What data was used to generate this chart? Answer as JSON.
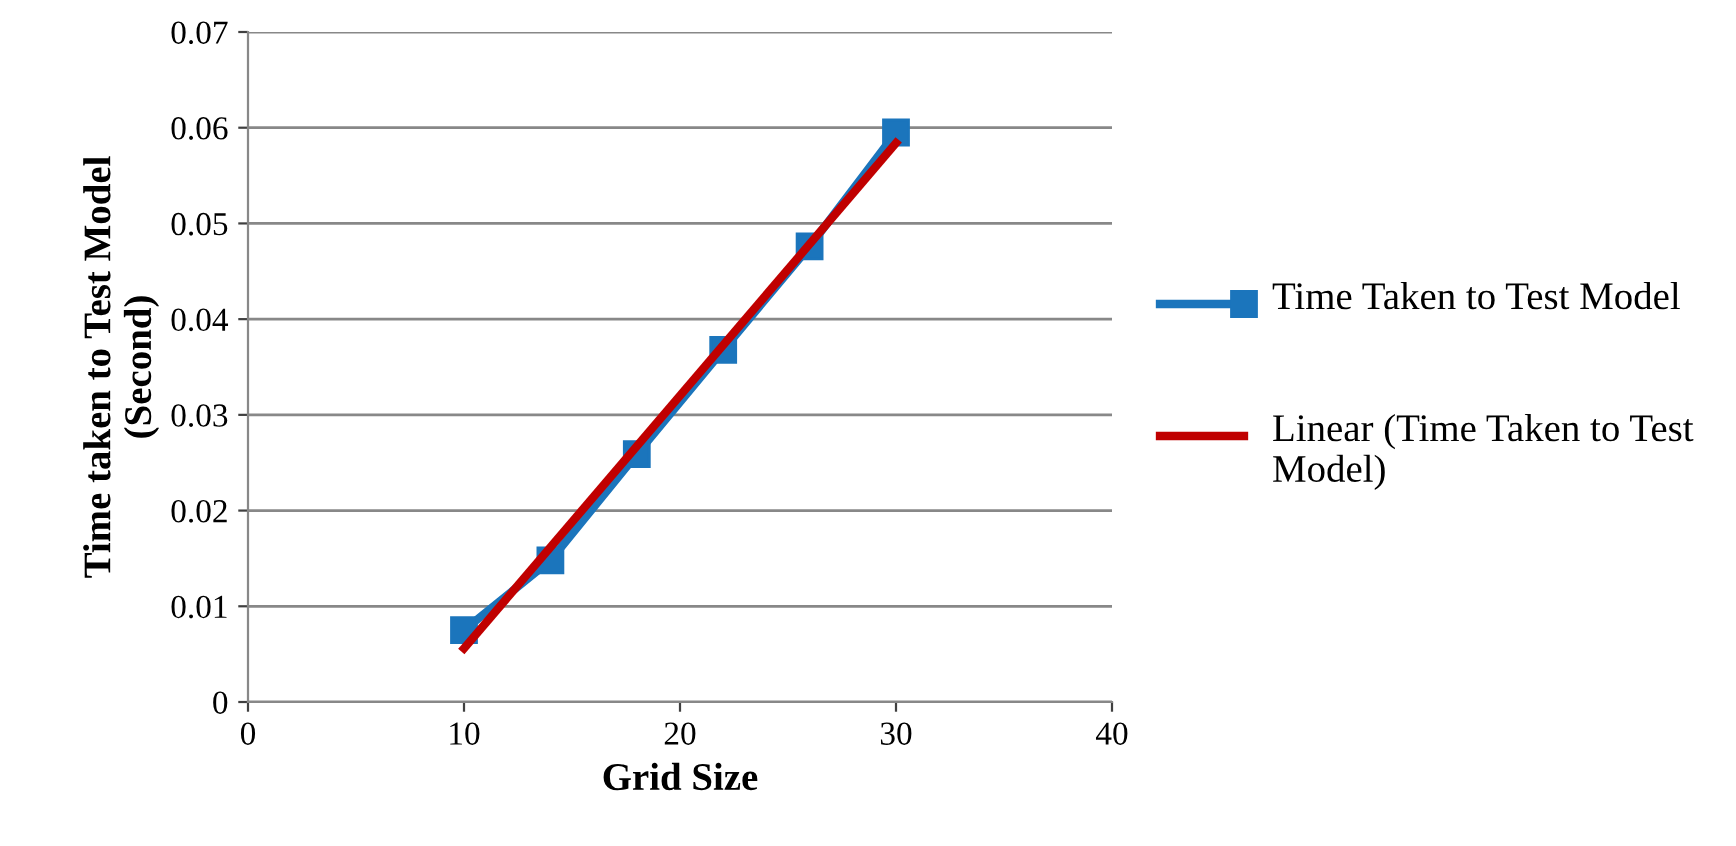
{
  "chart_data": {
    "type": "line",
    "xlabel": "Grid Size",
    "ylabel": "Time taken to Test Model\n(Second)",
    "x": [
      10,
      14,
      18,
      22,
      26,
      30
    ],
    "series": [
      {
        "name": "Time Taken to Test Model",
        "color": "#1b75bc",
        "marker": "square",
        "values": [
          0.0075,
          0.0148,
          0.0259,
          0.0368,
          0.0476,
          0.0595
        ]
      },
      {
        "name": "Linear (Time Taken to Test Model)",
        "color": "#c00000",
        "marker": "none",
        "x": [
          10,
          30
        ],
        "values": [
          0.0056,
          0.0584
        ]
      }
    ],
    "xlim": [
      0,
      40
    ],
    "xticks": [
      0,
      10,
      20,
      30,
      40
    ],
    "ylim": [
      0,
      0.07
    ],
    "yticks": [
      {
        "value": 0,
        "label": "0"
      },
      0.01,
      0.02,
      0.03,
      0.04,
      0.05,
      0.06,
      0.07
    ],
    "grid": "y",
    "legend": "right",
    "line_style": "solid"
  }
}
